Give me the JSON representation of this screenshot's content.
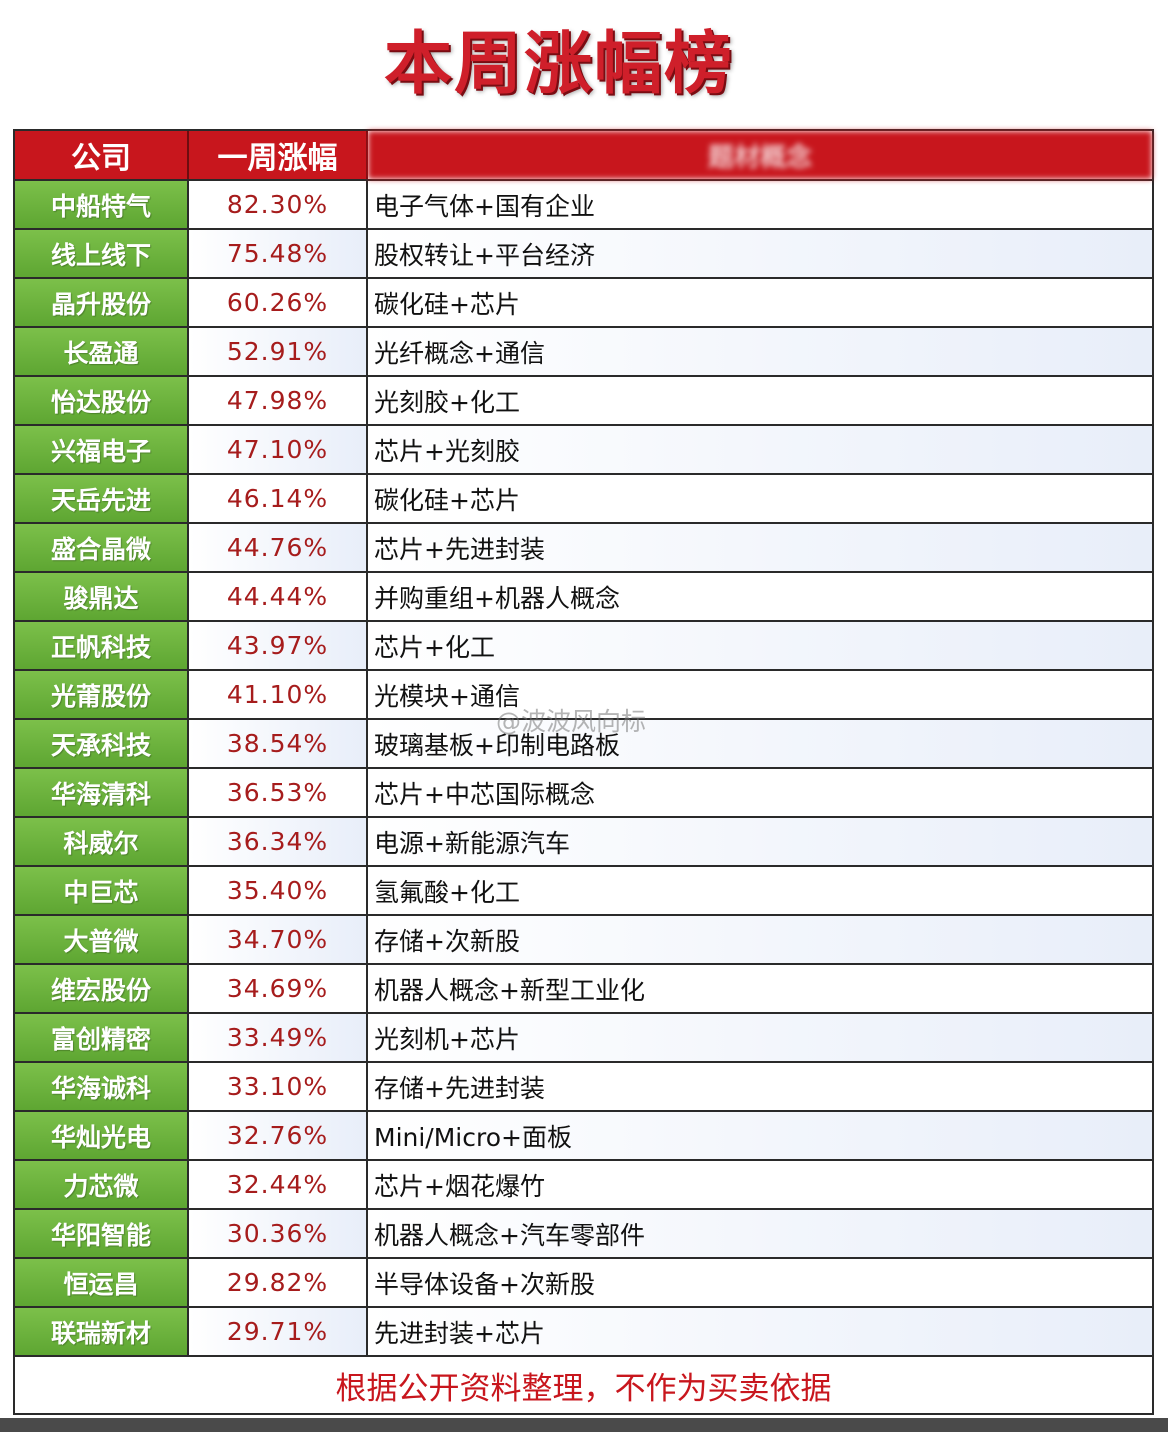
{
  "title": "本周涨幅榜",
  "headers": {
    "company": "公司",
    "weekly_gain": "一周涨幅",
    "theme": "题材概念"
  },
  "rows": [
    {
      "company": "中船特气",
      "gain": "82.30%",
      "theme": "电子气体+国有企业"
    },
    {
      "company": "线上线下",
      "gain": "75.48%",
      "theme": "股权转让+平台经济"
    },
    {
      "company": "晶升股份",
      "gain": "60.26%",
      "theme": "碳化硅+芯片"
    },
    {
      "company": "长盈通",
      "gain": "52.91%",
      "theme": "光纤概念+通信"
    },
    {
      "company": "怡达股份",
      "gain": "47.98%",
      "theme": "光刻胶+化工"
    },
    {
      "company": "兴福电子",
      "gain": "47.10%",
      "theme": "芯片+光刻胶"
    },
    {
      "company": "天岳先进",
      "gain": "46.14%",
      "theme": "碳化硅+芯片"
    },
    {
      "company": "盛合晶微",
      "gain": "44.76%",
      "theme": "芯片+先进封装"
    },
    {
      "company": "骏鼎达",
      "gain": "44.44%",
      "theme": "并购重组+机器人概念"
    },
    {
      "company": "正帆科技",
      "gain": "43.97%",
      "theme": "芯片+化工"
    },
    {
      "company": "光莆股份",
      "gain": "41.10%",
      "theme": "光模块+通信"
    },
    {
      "company": "天承科技",
      "gain": "38.54%",
      "theme": "玻璃基板+印制电路板"
    },
    {
      "company": "华海清科",
      "gain": "36.53%",
      "theme": "芯片+中芯国际概念"
    },
    {
      "company": "科威尔",
      "gain": "36.34%",
      "theme": "电源+新能源汽车"
    },
    {
      "company": "中巨芯",
      "gain": "35.40%",
      "theme": "氢氟酸+化工"
    },
    {
      "company": "大普微",
      "gain": "34.70%",
      "theme": "存储+次新股"
    },
    {
      "company": "维宏股份",
      "gain": "34.69%",
      "theme": "机器人概念+新型工业化"
    },
    {
      "company": "富创精密",
      "gain": "33.49%",
      "theme": "光刻机+芯片"
    },
    {
      "company": "华海诚科",
      "gain": "33.10%",
      "theme": "存储+先进封装"
    },
    {
      "company": "华灿光电",
      "gain": "32.76%",
      "theme": "Mini/Micro+面板"
    },
    {
      "company": "力芯微",
      "gain": "32.44%",
      "theme": "芯片+烟花爆竹"
    },
    {
      "company": "华阳智能",
      "gain": "30.36%",
      "theme": "机器人概念+汽车零部件"
    },
    {
      "company": "恒运昌",
      "gain": "29.82%",
      "theme": "半导体设备+次新股"
    },
    {
      "company": "联瑞新材",
      "gain": "29.71%",
      "theme": "先进封装+芯片"
    }
  ],
  "footer": "根据公开资料整理，不作为买卖依据",
  "watermark": "@波波风向标"
}
